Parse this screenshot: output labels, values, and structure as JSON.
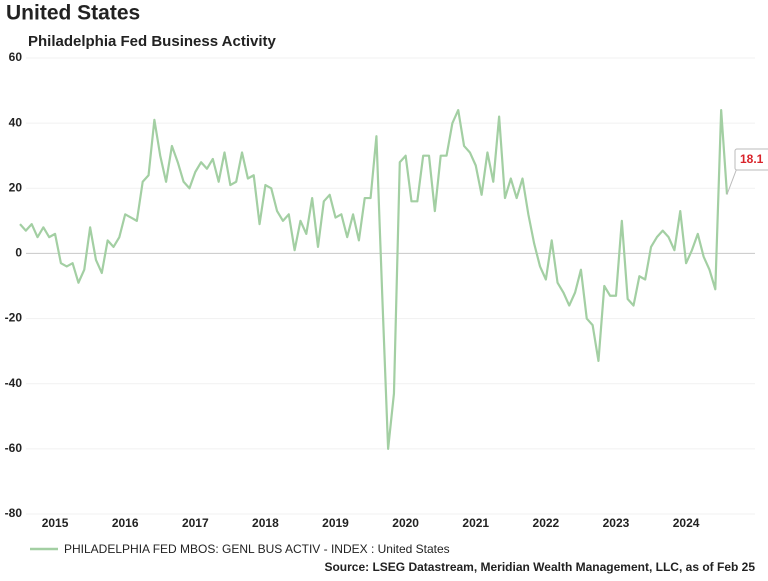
{
  "chart_data": {
    "type": "line",
    "title": "United States",
    "subtitle": "Philadelphia Fed Business Activity",
    "source": "Source: LSEG Datastream, Meridian Wealth Management, LLC, as of Feb 25",
    "categories": [
      null,
      null,
      null,
      null,
      null,
      null,
      "2015",
      null,
      null,
      null,
      null,
      null,
      null,
      null,
      null,
      null,
      null,
      null,
      "2016",
      null,
      null,
      null,
      null,
      null,
      null,
      null,
      null,
      null,
      null,
      null,
      "2017",
      null,
      null,
      null,
      null,
      null,
      null,
      null,
      null,
      null,
      null,
      null,
      "2018",
      null,
      null,
      null,
      null,
      null,
      null,
      null,
      null,
      null,
      null,
      null,
      "2019",
      null,
      null,
      null,
      null,
      null,
      null,
      null,
      null,
      null,
      null,
      null,
      "2020",
      null,
      null,
      null,
      null,
      null,
      null,
      null,
      null,
      null,
      null,
      null,
      "2021",
      null,
      null,
      null,
      null,
      null,
      null,
      null,
      null,
      null,
      null,
      null,
      "2022",
      null,
      null,
      null,
      null,
      null,
      null,
      null,
      null,
      null,
      null,
      null,
      "2023",
      null,
      null,
      null,
      null,
      null,
      null,
      null,
      null,
      null,
      null,
      null,
      "2024",
      null,
      null,
      null,
      null,
      null,
      null,
      null
    ],
    "series": [
      {
        "name": "PHILADELPHIA FED MBOS: GENL BUS ACTIV - INDEX : United States",
        "color": "#a3cfa3",
        "values": [
          9,
          7,
          9,
          5,
          8,
          5,
          6,
          -3,
          -4,
          -3,
          -9,
          -5,
          8,
          -2,
          -6,
          4,
          2,
          5,
          12,
          11,
          10,
          22,
          24,
          41,
          30,
          22,
          33,
          28,
          22,
          20,
          25,
          28,
          26,
          29,
          22,
          31,
          21,
          22,
          31,
          23,
          24,
          9,
          21,
          20,
          13,
          10,
          12,
          1,
          10,
          6,
          17,
          2,
          16,
          18,
          11,
          12,
          5,
          12,
          4,
          17,
          17,
          36,
          -13,
          -60,
          -43,
          28,
          30,
          16,
          16,
          30,
          30,
          13,
          30,
          30,
          40,
          44,
          33,
          31,
          27,
          18,
          31,
          22,
          42,
          17,
          23,
          17,
          23,
          12,
          3,
          -4,
          -8,
          4,
          -9,
          -12,
          -16,
          -12,
          -5,
          -20,
          -22,
          -33,
          -10,
          -13,
          -13,
          10,
          -14,
          -16,
          -7,
          -8,
          2,
          5,
          7,
          5,
          1,
          13,
          -3,
          1,
          6,
          -1,
          -5,
          -11,
          44,
          18.1
        ]
      }
    ],
    "ylim": [
      -80,
      60
    ],
    "yticks": [
      -80,
      -60,
      -40,
      -20,
      0,
      20,
      40,
      60
    ],
    "grid": true
  }
}
